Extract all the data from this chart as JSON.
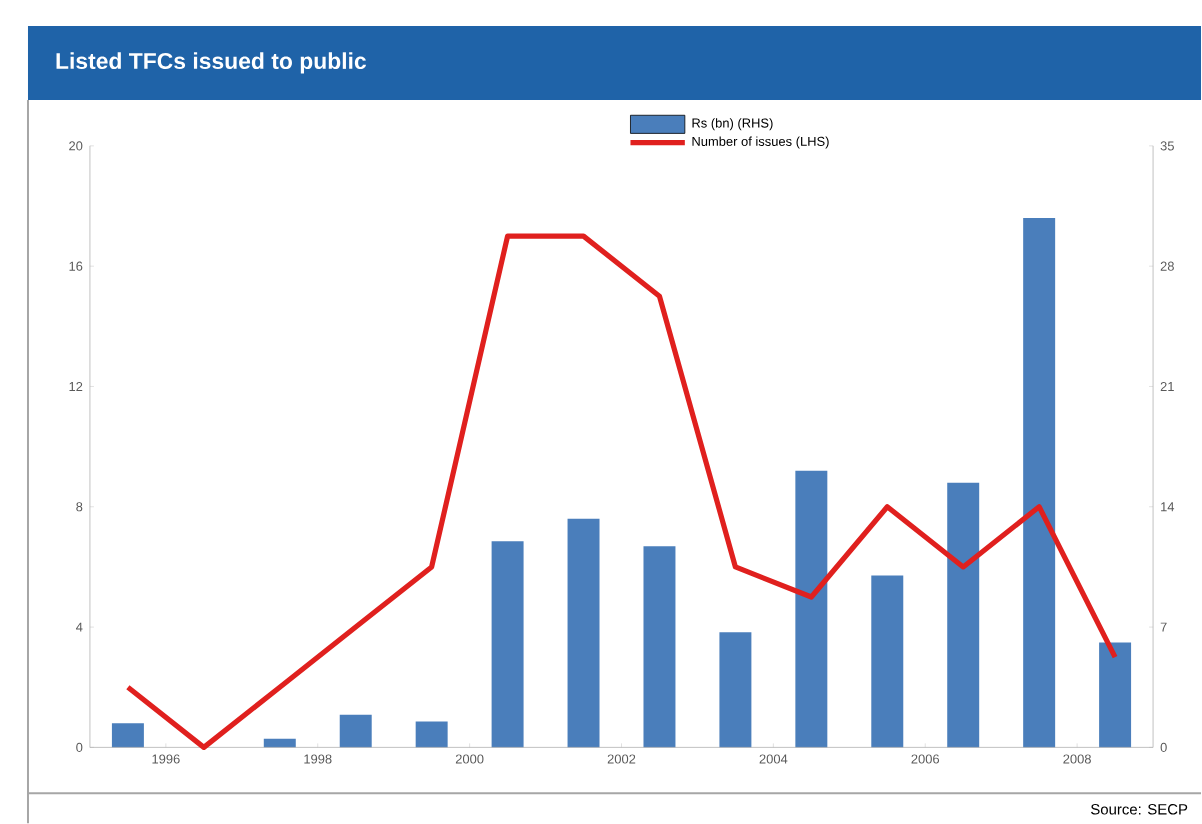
{
  "chart_data": {
    "type": "bar",
    "title": "Listed TFCs  issued to public",
    "x": [
      1995.5,
      1996.5,
      1997.5,
      1998.5,
      1999.5,
      2000.5,
      2001.5,
      2002.5,
      2003.5,
      2004.5,
      2005.5,
      2006.5,
      2007.5,
      2008.5
    ],
    "series": [
      {
        "name": "Rs (bn) (RHS)",
        "axis": "y2",
        "color": "#4a7ebb",
        "values": [
          1.4,
          0,
          0.5,
          1.9,
          1.5,
          12.0,
          13.3,
          11.7,
          6.7,
          16.1,
          10.0,
          15.4,
          30.8,
          6.1
        ]
      },
      {
        "name": "Number of issues (LHS)",
        "type": "line",
        "axis": "y",
        "color": "#e0201e",
        "values": [
          2,
          0,
          2,
          4,
          6,
          17,
          17,
          15,
          6,
          5,
          8,
          6,
          8,
          3
        ]
      }
    ],
    "xlim": [
      1995,
      2009
    ],
    "xticks": [
      1996,
      1998,
      2000,
      2002,
      2004,
      2006,
      2008
    ],
    "ylim": [
      0,
      20
    ],
    "yticks": [
      0,
      4,
      8,
      12,
      16,
      20
    ],
    "y2lim": [
      0,
      35
    ],
    "y2ticks": [
      0,
      7,
      14,
      21,
      28,
      35
    ],
    "legend": "top right",
    "marker": "none",
    "annotations": [
      "Source: SECP"
    ]
  }
}
